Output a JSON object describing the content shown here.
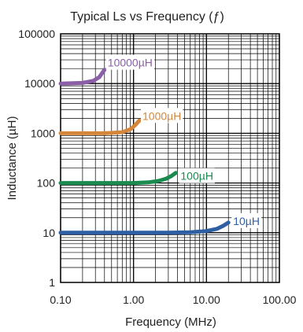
{
  "chart_data": {
    "type": "line",
    "title": "Typical Ls vs Frequency (ƒ)",
    "xlabel": "Frequency (MHz)",
    "ylabel": "Inductance (µH)",
    "xscale": "log",
    "yscale": "log",
    "xlim": [
      0.1,
      100
    ],
    "ylim": [
      1,
      100000
    ],
    "grid": true,
    "x_ticks": [
      {
        "value": 0.1,
        "label": "0.10"
      },
      {
        "value": 1,
        "label": "1.00"
      },
      {
        "value": 10,
        "label": "10.00"
      },
      {
        "value": 100,
        "label": "100.00"
      }
    ],
    "y_ticks": [
      {
        "value": 1,
        "label": "1"
      },
      {
        "value": 10,
        "label": "10"
      },
      {
        "value": 100,
        "label": "100"
      },
      {
        "value": 1000,
        "label": "1000"
      },
      {
        "value": 10000,
        "label": "10000"
      },
      {
        "value": 100000,
        "label": "100000"
      }
    ],
    "series": [
      {
        "name": "10µH",
        "color": "#2e5fa3",
        "x": [
          0.1,
          0.5,
          1,
          3,
          6,
          10,
          14,
          17,
          20
        ],
        "y": [
          10,
          10,
          10,
          10,
          10.2,
          10.8,
          12,
          13.8,
          16
        ]
      },
      {
        "name": "100µH",
        "color": "#1a8a4e",
        "x": [
          0.1,
          0.5,
          1,
          1.6,
          2.2,
          2.8,
          3.3,
          3.8
        ],
        "y": [
          100,
          100,
          100,
          103,
          110,
          122,
          138,
          160
        ]
      },
      {
        "name": "1000µH",
        "color": "#d4873a",
        "x": [
          0.1,
          0.4,
          0.7,
          0.9,
          1.05,
          1.2
        ],
        "y": [
          1000,
          1000,
          1050,
          1200,
          1450,
          1800
        ]
      },
      {
        "name": "10000µH",
        "color": "#8a5fa8",
        "x": [
          0.1,
          0.2,
          0.28,
          0.34,
          0.4
        ],
        "y": [
          10000,
          10300,
          11300,
          13500,
          19000
        ]
      }
    ]
  }
}
